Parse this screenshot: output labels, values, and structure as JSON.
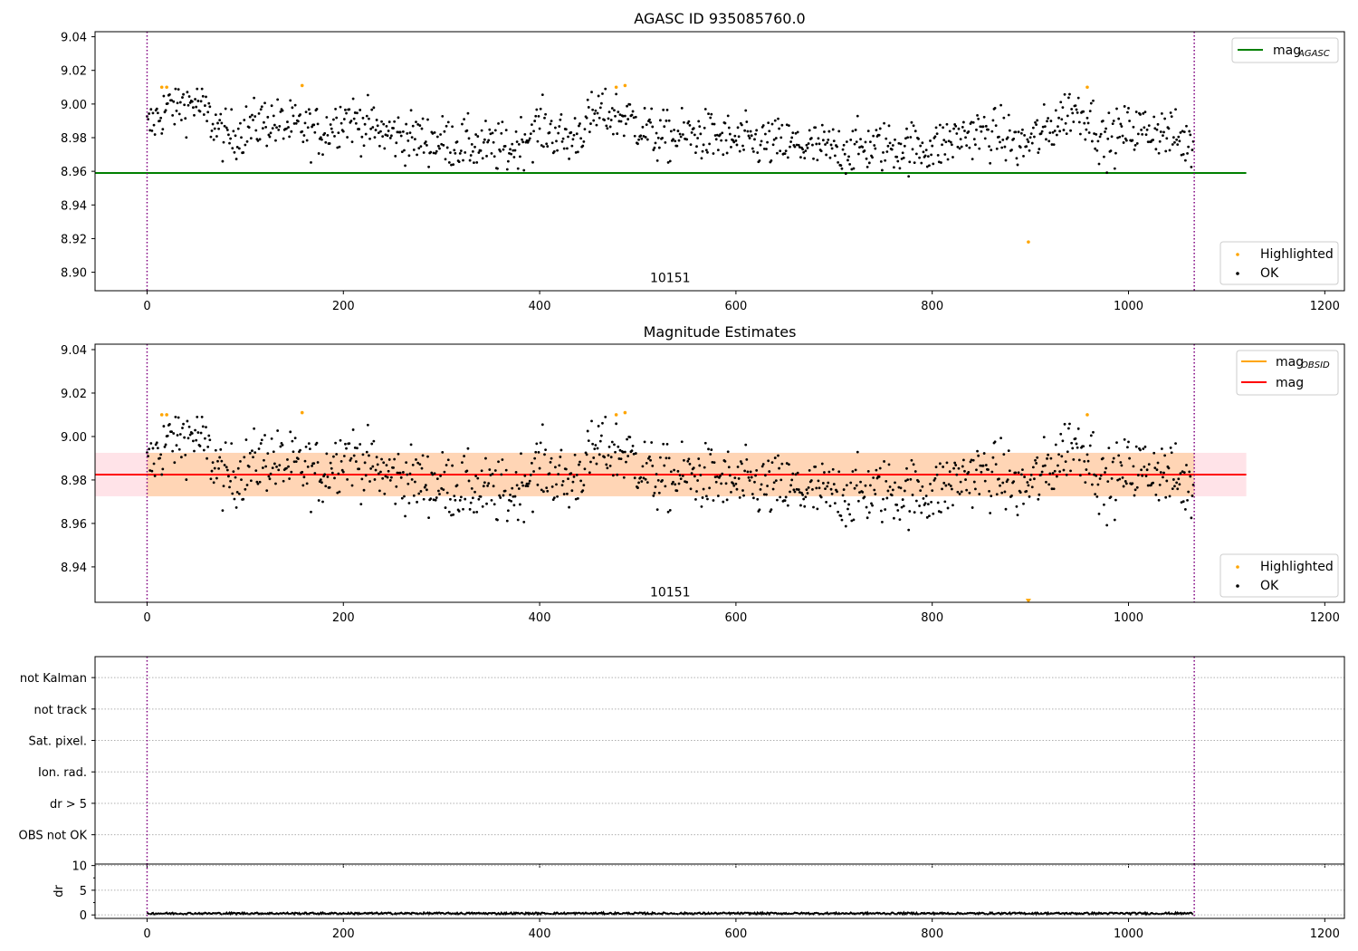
{
  "figure": {
    "window_title": "AGASC ID 935085760.0"
  },
  "chart_data": [
    {
      "type": "scatter",
      "title": "AGASC ID 935085760.0",
      "xlim": [
        -53,
        1220
      ],
      "ylim": [
        8.889,
        9.043
      ],
      "xticks": [
        0,
        200,
        400,
        600,
        800,
        1000,
        1200
      ],
      "xtick_labels": [
        "0",
        "200",
        "400",
        "600",
        "800",
        "1000",
        "1200"
      ],
      "yticks": [
        8.9,
        8.92,
        8.94,
        8.96,
        8.98,
        9.0,
        9.02,
        9.04
      ],
      "ytick_labels": [
        "8.90",
        "8.92",
        "8.94",
        "8.96",
        "8.98",
        "9.00",
        "9.02",
        "9.04"
      ],
      "vlines": [
        0,
        1067
      ],
      "hline": {
        "y": 8.959,
        "xmin": -53,
        "xmax": 1120,
        "color": "#008000"
      },
      "annotation": {
        "text": "10151",
        "x": 533,
        "y": 8.894
      },
      "legend_lines": [
        {
          "label": "mag",
          "sub": "AGASC",
          "color": "#008000"
        }
      ],
      "legend_points": [
        {
          "label": "Highlighted",
          "color": "#ffa500"
        },
        {
          "label": "OK",
          "color": "#000000"
        }
      ],
      "series": [
        {
          "name": "OK",
          "color": "#000000",
          "n": 1067,
          "y_range": [
            8.955,
            9.009
          ]
        },
        {
          "name": "Highlighted",
          "color": "#ffa500",
          "x": [
            15,
            20,
            158,
            478,
            487,
            898,
            958
          ],
          "y": [
            9.01,
            9.01,
            9.011,
            9.01,
            9.011,
            8.918,
            9.01
          ]
        }
      ]
    },
    {
      "type": "scatter",
      "title": "Magnitude Estimates",
      "xlim": [
        -53,
        1220
      ],
      "ylim": [
        8.9237,
        9.0425
      ],
      "xticks": [
        0,
        200,
        400,
        600,
        800,
        1000,
        1200
      ],
      "xtick_labels": [
        "0",
        "200",
        "400",
        "600",
        "800",
        "1000",
        "1200"
      ],
      "yticks": [
        8.94,
        8.96,
        8.98,
        9.0,
        9.02,
        9.04
      ],
      "ytick_labels": [
        "8.94",
        "8.96",
        "8.98",
        "9.00",
        "9.02",
        "9.04"
      ],
      "vlines": [
        0,
        1067
      ],
      "bands": [
        {
          "y0": 8.9725,
          "y1": 8.9925,
          "x0": -53,
          "x1": 1120,
          "color": "#ffc0cb",
          "opacity": 0.45
        },
        {
          "y0": 8.9725,
          "y1": 8.9925,
          "x0": 0,
          "x1": 1067,
          "color": "#ffa500",
          "opacity": 0.22
        }
      ],
      "hline": {
        "y": 8.9825,
        "xmin": -53,
        "xmax": 1120,
        "color": "#ff0000"
      },
      "annotation": {
        "text": "10151",
        "x": 533,
        "y": 8.9265
      },
      "legend_lines": [
        {
          "label": "mag",
          "sub": "OBSID",
          "color": "#ffa500"
        },
        {
          "label": "mag",
          "sub": "",
          "color": "#ff0000"
        }
      ],
      "legend_points": [
        {
          "label": "Highlighted",
          "color": "#ffa500"
        },
        {
          "label": "OK",
          "color": "#000000"
        }
      ],
      "series": [
        {
          "name": "OK",
          "color": "#000000",
          "n": 1067,
          "y_range": [
            8.955,
            9.009
          ]
        },
        {
          "name": "Highlighted",
          "color": "#ffa500",
          "x": [
            15,
            20,
            158,
            478,
            487,
            958
          ],
          "y": [
            9.01,
            9.01,
            9.011,
            9.01,
            9.011,
            9.01
          ]
        },
        {
          "name": "Highlighted (off-scale)",
          "color": "#ffa500",
          "marker": "triangle-down",
          "x": [
            898
          ],
          "y": [
            8.9245
          ]
        }
      ]
    },
    {
      "type": "scatter",
      "title": "",
      "xlim": [
        -53,
        1220
      ],
      "categories": [
        "OBS not OK",
        "dr > 5",
        "Ion. rad.",
        "Sat. pixel.",
        "not track",
        "not Kalman"
      ],
      "vlines": [
        0,
        1067
      ],
      "series": []
    },
    {
      "type": "line",
      "title": "",
      "ylabel": "dr",
      "xlim": [
        -53,
        1220
      ],
      "ylim": [
        -0.7,
        10.3
      ],
      "xticks": [
        0,
        200,
        400,
        600,
        800,
        1000,
        1200
      ],
      "xtick_labels": [
        "0",
        "200",
        "400",
        "600",
        "800",
        "1000",
        "1200"
      ],
      "yticks": [
        0,
        5,
        10
      ],
      "ytick_labels": [
        "0",
        "5",
        "10"
      ],
      "vlines": [
        0,
        1067
      ],
      "series": [
        {
          "name": "dr",
          "color": "#000000",
          "n": 1067,
          "y_range": [
            0.1,
            0.5
          ]
        }
      ]
    }
  ]
}
